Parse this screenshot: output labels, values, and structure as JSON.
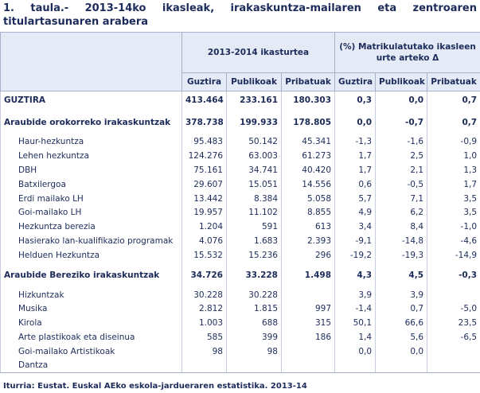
{
  "header": {
    "title": "1. taula.- 2013-14ko ikasleak, irakaskuntza-mailaren eta zentroaren titulartasunaren arabera"
  },
  "table": {
    "group_headers": [
      "2013-2014 ikasturtea",
      "(%) Matrikulatutako ikasleen urte arteko Δ"
    ],
    "columns": [
      "Guztira",
      "Publikoak",
      "Pribatuak",
      "Guztira",
      "Publikoak",
      "Pribatuak"
    ],
    "rows": [
      {
        "label": "GUZTIRA",
        "bold": true,
        "cells": [
          "413.464",
          "233.161",
          "180.303",
          "0,3",
          "0,0",
          "0,7"
        ]
      },
      {
        "label": "Araubide orokorreko irakaskuntzak",
        "bold": true,
        "cells": [
          "378.738",
          "199.933",
          "178.805",
          "0,0",
          "-0,7",
          "0,7"
        ]
      },
      {
        "label": "Haur-hezkuntza",
        "bold": false,
        "cells": [
          "95.483",
          "50.142",
          "45.341",
          "-1,3",
          "-1,6",
          "-0,9"
        ]
      },
      {
        "label": "Lehen hezkuntza",
        "bold": false,
        "cells": [
          "124.276",
          "63.003",
          "61.273",
          "1,7",
          "2,5",
          "1,0"
        ]
      },
      {
        "label": "DBH",
        "bold": false,
        "cells": [
          "75.161",
          "34.741",
          "40.420",
          "1,7",
          "2,1",
          "1,3"
        ]
      },
      {
        "label": "Batxilergoa",
        "bold": false,
        "cells": [
          "29.607",
          "15.051",
          "14.556",
          "0,6",
          "-0,5",
          "1,7"
        ]
      },
      {
        "label": "Erdi mailako LH",
        "bold": false,
        "cells": [
          "13.442",
          "8.384",
          "5.058",
          "5,7",
          "7,1",
          "3,5"
        ]
      },
      {
        "label": "Goi-mailako LH",
        "bold": false,
        "cells": [
          "19.957",
          "11.102",
          "8.855",
          "4,9",
          "6,2",
          "3,5"
        ]
      },
      {
        "label": "Hezkuntza berezia",
        "bold": false,
        "cells": [
          "1.204",
          "591",
          "613",
          "3,4",
          "8,4",
          "-1,0"
        ]
      },
      {
        "label": "Hasierako lan-kualifikazio programak",
        "bold": false,
        "cells": [
          "4.076",
          "1.683",
          "2.393",
          "-9,1",
          "-14,8",
          "-4,6"
        ]
      },
      {
        "label": "Helduen Hezkuntza",
        "bold": false,
        "cells": [
          "15.532",
          "15.236",
          "296",
          "-19,2",
          "-19,3",
          "-14,9"
        ]
      },
      {
        "label": "Araubide Bereziko irakaskuntzak",
        "bold": true,
        "cells": [
          "34.726",
          "33.228",
          "1.498",
          "4,3",
          "4,5",
          "-0,3"
        ]
      },
      {
        "label": "Hizkuntzak",
        "bold": false,
        "cells": [
          "30.228",
          "30.228",
          null,
          "3,9",
          "3,9",
          null
        ]
      },
      {
        "label": "Musika",
        "bold": false,
        "cells": [
          "2.812",
          "1.815",
          "997",
          "-1,4",
          "0,7",
          "-5,0"
        ]
      },
      {
        "label": "Kirola",
        "bold": false,
        "cells": [
          "1.003",
          "688",
          "315",
          "50,1",
          "66,6",
          "23,5"
        ]
      },
      {
        "label": "Arte plastikoak eta diseinua",
        "bold": false,
        "cells": [
          "585",
          "399",
          "186",
          "1,4",
          "5,6",
          "-6,5"
        ]
      },
      {
        "label": "Goi-mailako Artistikoak",
        "bold": false,
        "cells": [
          "98",
          "98",
          null,
          "0,0",
          "0,0",
          null
        ]
      },
      {
        "label": "Dantza",
        "bold": false,
        "cells": [
          null,
          null,
          null,
          null,
          null,
          null
        ]
      }
    ]
  },
  "source": "Iturria: Eustat. Euskal AEko eskola-jardueraren estatistika. 2013-14"
}
